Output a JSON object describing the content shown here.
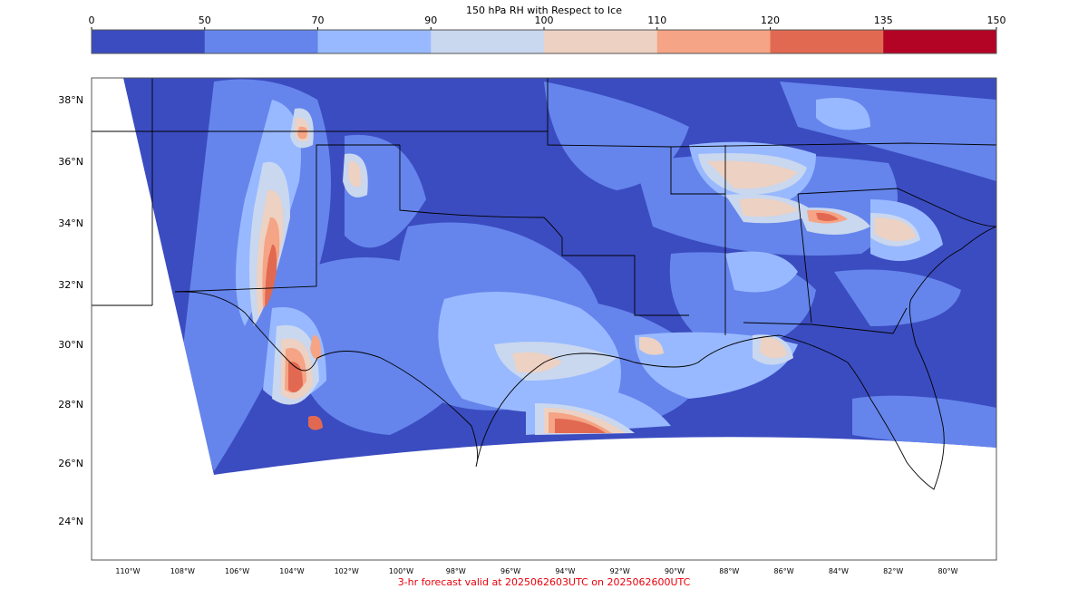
{
  "colorbar": {
    "title": "150 hPa RH with Respect to Ice",
    "ticks": [
      "0",
      "50",
      "70",
      "90",
      "100",
      "110",
      "120",
      "135",
      "150"
    ],
    "colors": [
      "#3b4cc0",
      "#6585ec",
      "#98b9ff",
      "#c9d7ef",
      "#edd1c2",
      "#f5a485",
      "#e26951",
      "#b40426"
    ]
  },
  "map": {
    "lat_labels": [
      "38°N",
      "36°N",
      "34°N",
      "32°N",
      "30°N",
      "28°N",
      "26°N",
      "24°N"
    ],
    "lon_labels": [
      "110°W",
      "108°W",
      "106°W",
      "104°W",
      "102°W",
      "100°W",
      "98°W",
      "96°W",
      "94°W",
      "92°W",
      "90°W",
      "88°W",
      "86°W",
      "84°W",
      "82°W",
      "80°W"
    ],
    "colors": {
      "very_low": "#3b4cc0",
      "low": "#6585ec",
      "mid": "#98b9ff",
      "near_sat": "#c9d7ef",
      "slight_super": "#edd1c2",
      "super": "#f5a485",
      "high_super": "#e26951",
      "max": "#b40426"
    }
  },
  "footer": {
    "text": "3-hr forecast valid at 2025062603UTC on 2025062600UTC"
  }
}
